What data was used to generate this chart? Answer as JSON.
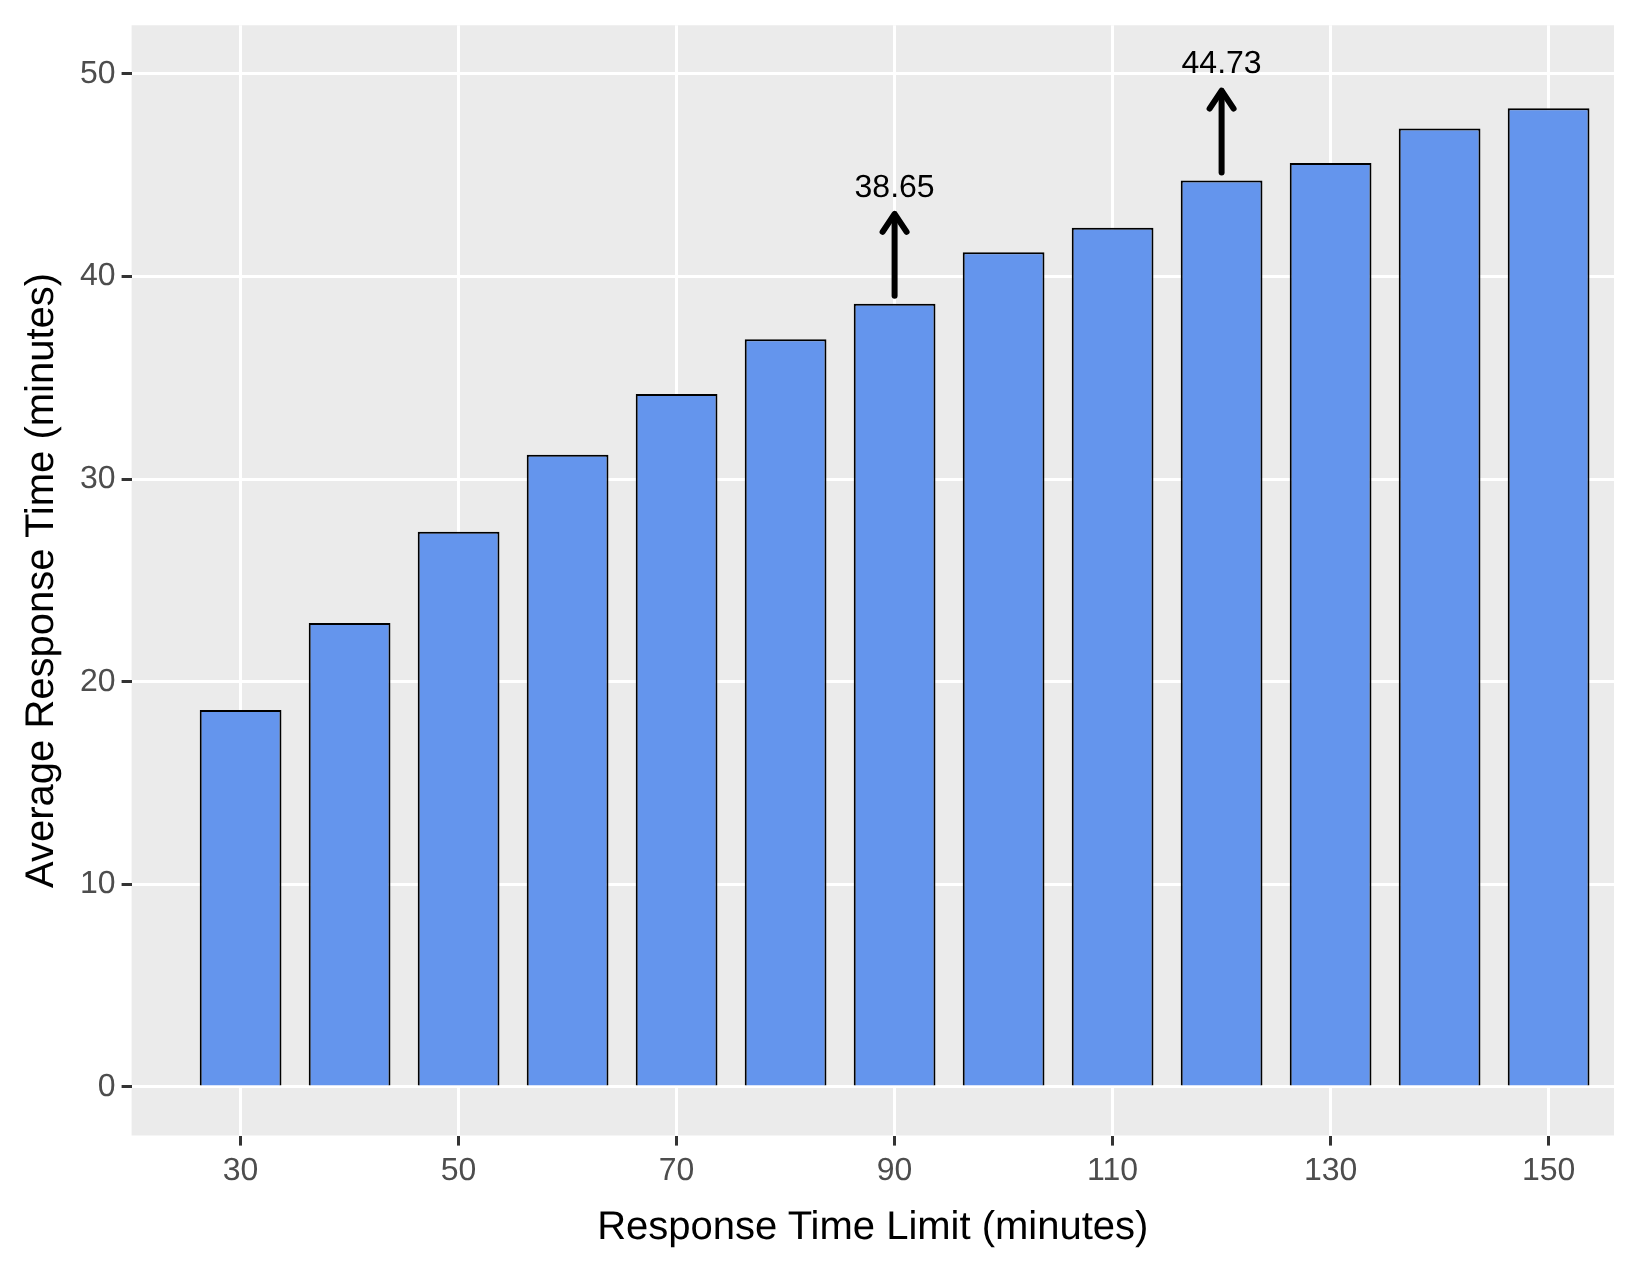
{
  "chart_data": {
    "type": "bar",
    "xlabel": "Response Time Limit (minutes)",
    "ylabel": "Average Response Time (minutes)",
    "x": [
      30,
      40,
      50,
      60,
      70,
      80,
      90,
      100,
      110,
      120,
      130,
      140,
      150
    ],
    "values": [
      18.6,
      22.9,
      27.4,
      31.2,
      34.2,
      36.9,
      38.65,
      41.2,
      42.4,
      44.73,
      45.6,
      47.3,
      48.3
    ],
    "color": "#6495ed",
    "xlim": [
      20,
      156
    ],
    "xticks": [
      30,
      50,
      70,
      90,
      110,
      130,
      150
    ],
    "ylim": [
      -2.4,
      52.4
    ],
    "yticks": [
      0,
      10,
      20,
      30,
      40,
      50
    ],
    "grid": true,
    "legend": false,
    "annotations": [
      {
        "text": "38.65",
        "x": 90,
        "y": 38.65
      },
      {
        "text": "44.73",
        "x": 120,
        "y": 44.73
      }
    ]
  }
}
